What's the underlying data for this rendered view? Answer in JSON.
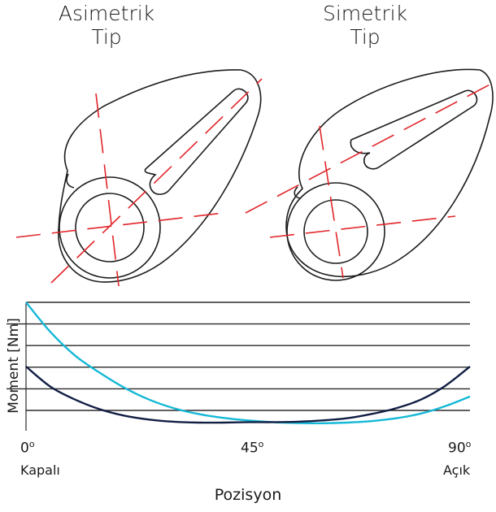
{
  "titles": {
    "left_line1": "Asimetrik",
    "left_line2": "Tip",
    "right_line1": "Simetrik",
    "right_line2": "Tip"
  },
  "colors": {
    "outline": "#1c1c1c",
    "axis_dash": "#e1262b",
    "series_asymmetric": "#15b8d6",
    "series_symmetric": "#121f44",
    "grid": "#2a2a2a"
  },
  "chart_data": {
    "type": "line",
    "xlabel": "Pozisyon",
    "ylabel": "Moment [Nm]",
    "x_ticks": [
      {
        "value": 0,
        "label": "0",
        "sup": "o"
      },
      {
        "value": 45,
        "label": "45",
        "sup": "o"
      },
      {
        "value": 90,
        "label": "90",
        "sup": "o"
      }
    ],
    "x_end_labels": {
      "start": "Kapalı",
      "end": "Açık"
    },
    "xlim": [
      0,
      90
    ],
    "ylim": [
      0,
      6
    ],
    "grid": {
      "horizontal": true,
      "lines": 6
    },
    "series": [
      {
        "color": "#15b8d6",
        "x": [
          0,
          5,
          10,
          15,
          20,
          25,
          30,
          35,
          40,
          45,
          50,
          55,
          60,
          65,
          70,
          75,
          80,
          85,
          90
        ],
        "y": [
          6.0,
          4.6,
          3.5,
          2.7,
          2.0,
          1.45,
          1.05,
          0.78,
          0.6,
          0.48,
          0.4,
          0.36,
          0.35,
          0.38,
          0.45,
          0.58,
          0.8,
          1.15,
          1.6
        ]
      },
      {
        "color": "#121f44",
        "x": [
          0,
          5,
          10,
          15,
          20,
          25,
          30,
          35,
          40,
          45,
          50,
          55,
          60,
          65,
          70,
          75,
          80,
          85,
          90
        ],
        "y": [
          3.0,
          2.05,
          1.45,
          1.0,
          0.7,
          0.52,
          0.42,
          0.38,
          0.38,
          0.4,
          0.4,
          0.42,
          0.48,
          0.58,
          0.78,
          1.05,
          1.45,
          2.1,
          3.0
        ]
      }
    ]
  }
}
